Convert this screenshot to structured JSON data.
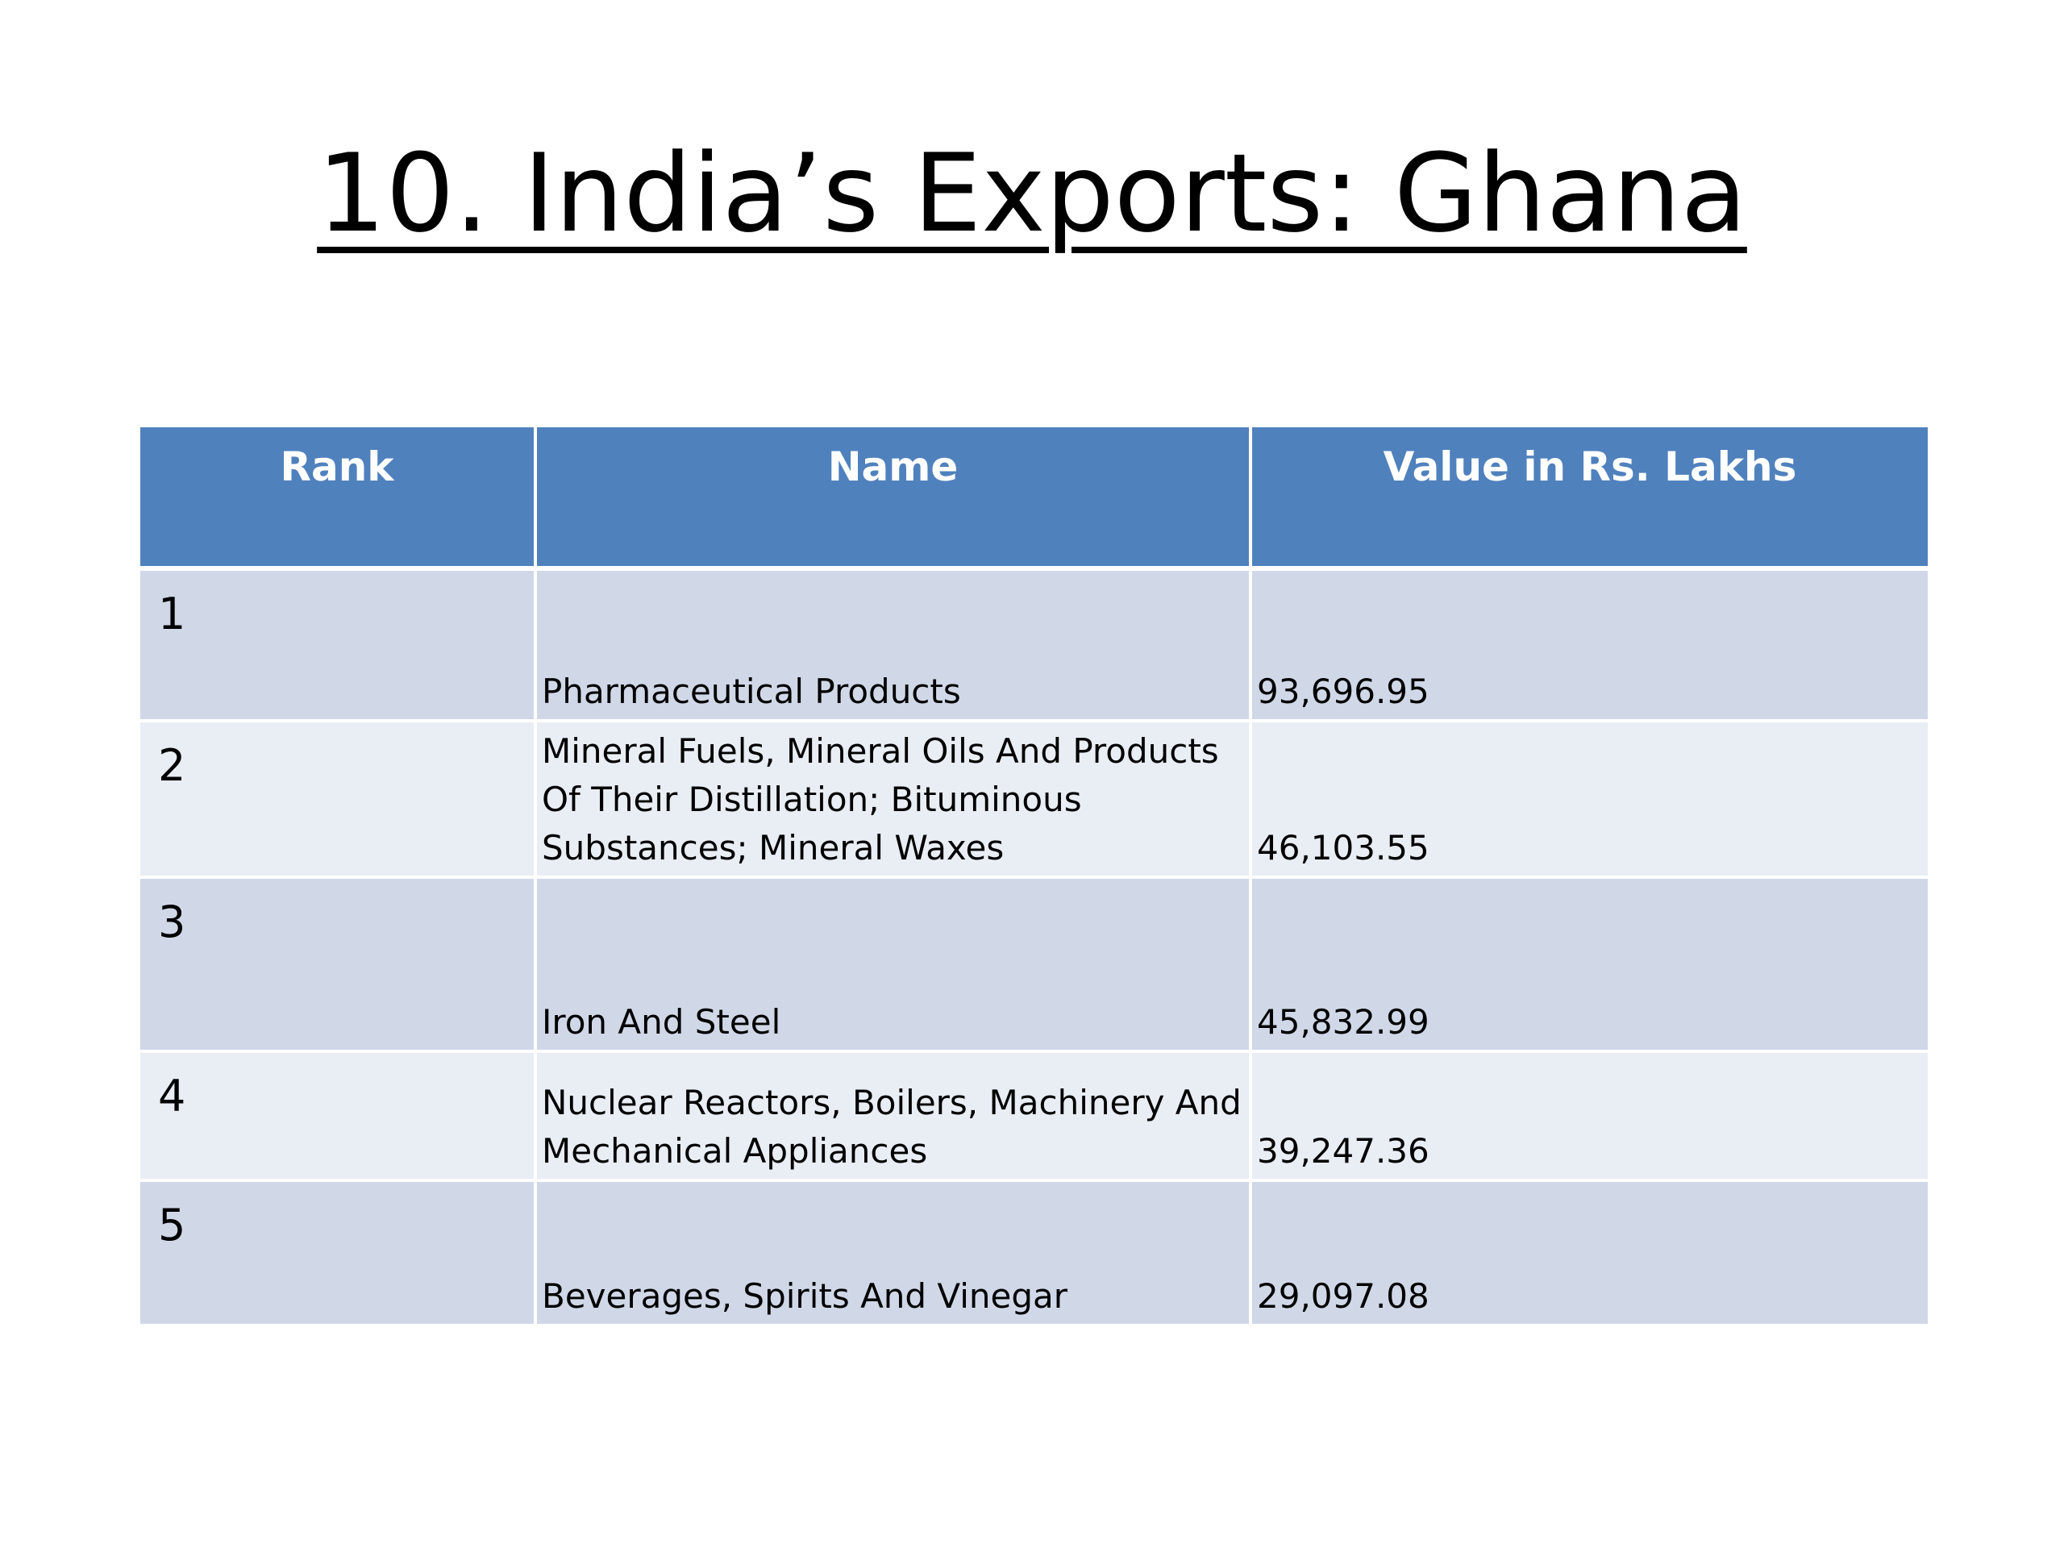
{
  "slide": {
    "title": "10. India’s Exports: Ghana"
  },
  "table": {
    "headers": {
      "rank": "Rank",
      "name": "Name",
      "value": "Value in Rs. Lakhs"
    },
    "rows": [
      {
        "rank": "1",
        "name": "Pharmaceutical Products",
        "value": "93,696.95"
      },
      {
        "rank": "2",
        "name": "Mineral Fuels, Mineral Oils And Products Of Their Distillation; Bituminous Substances; Mineral Waxes",
        "value": "46,103.55"
      },
      {
        "rank": "3",
        "name": "Iron And Steel",
        "value": "45,832.99"
      },
      {
        "rank": "4",
        "name": "Nuclear Reactors, Boilers, Machinery And Mechanical Appliances",
        "value": "39,247.36"
      },
      {
        "rank": "5",
        "name": "Beverages, Spirits And Vinegar",
        "value": "29,097.08"
      }
    ]
  }
}
